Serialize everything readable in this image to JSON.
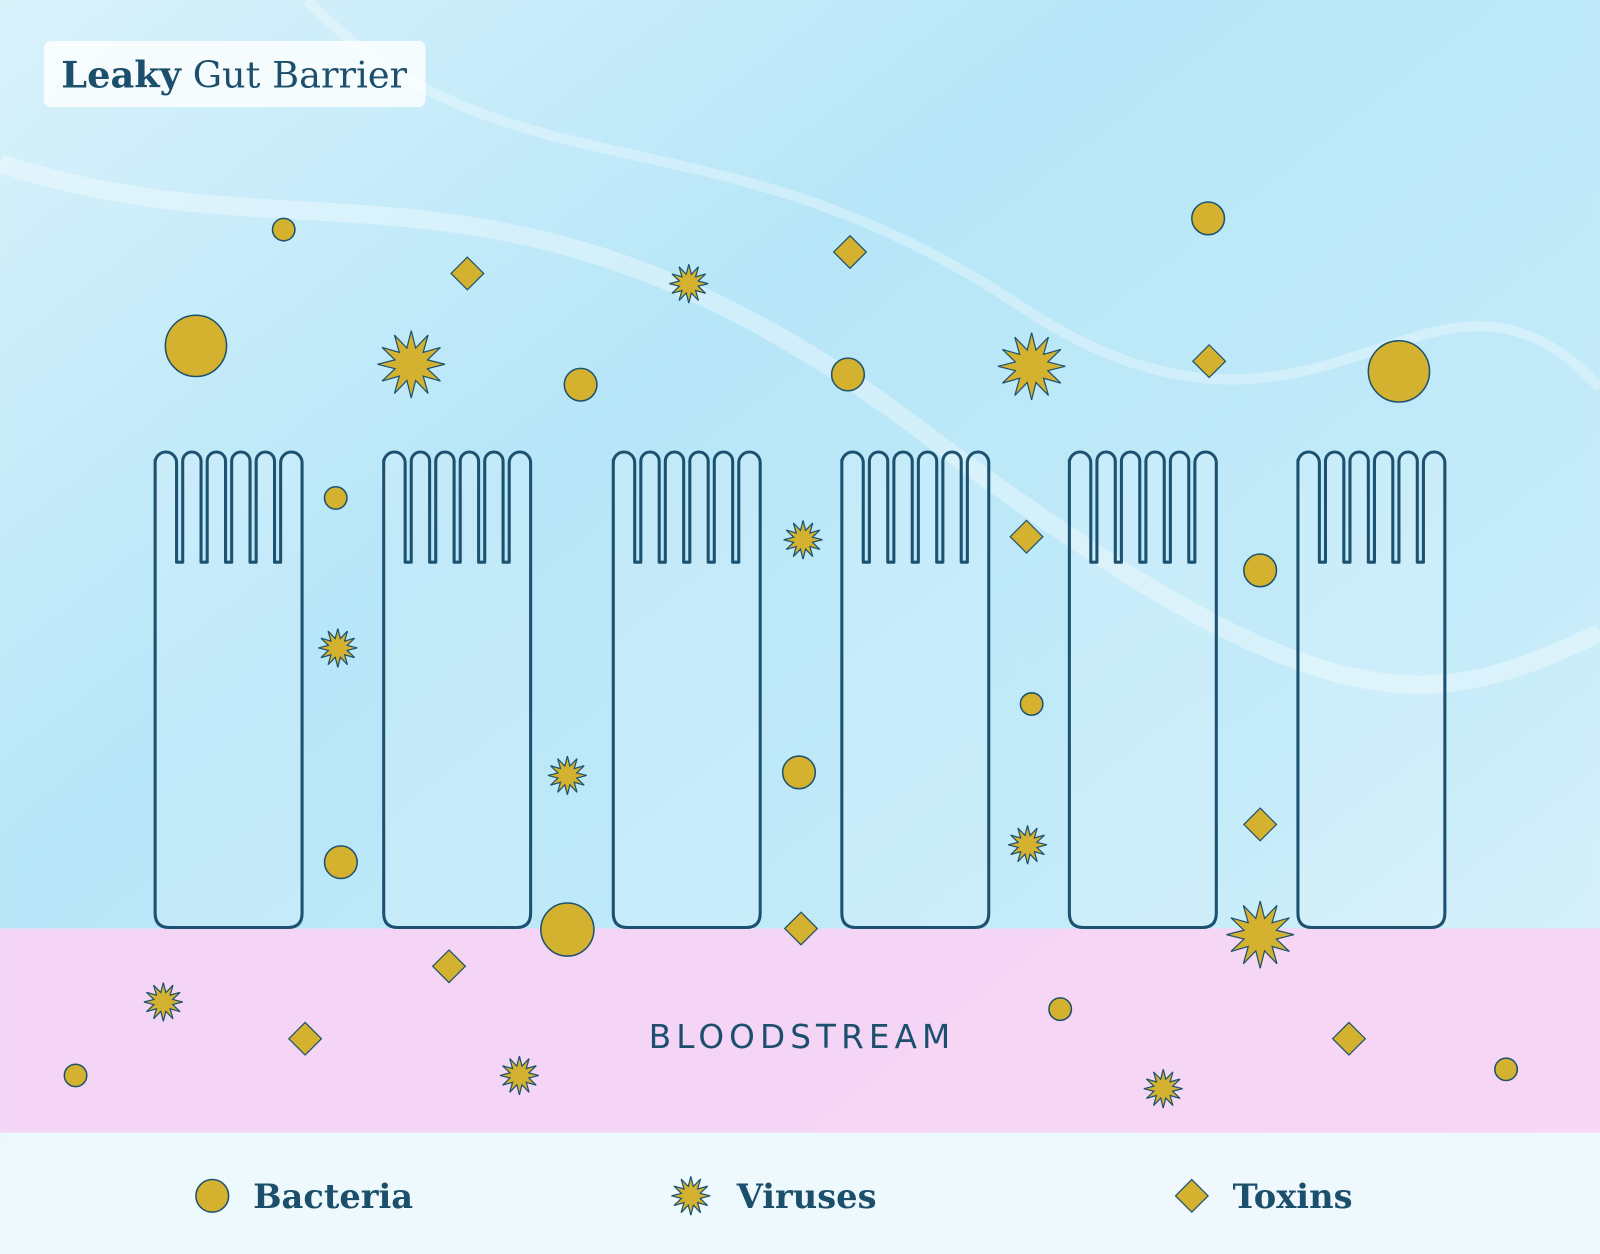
{
  "title": {
    "bold": "Leaky",
    "rest": "Gut Barrier"
  },
  "zone_label": "BLOODSTREAM",
  "legend": [
    {
      "label": "Bacteria"
    },
    {
      "label": "Viruses"
    },
    {
      "label": "Toxins"
    }
  ]
}
